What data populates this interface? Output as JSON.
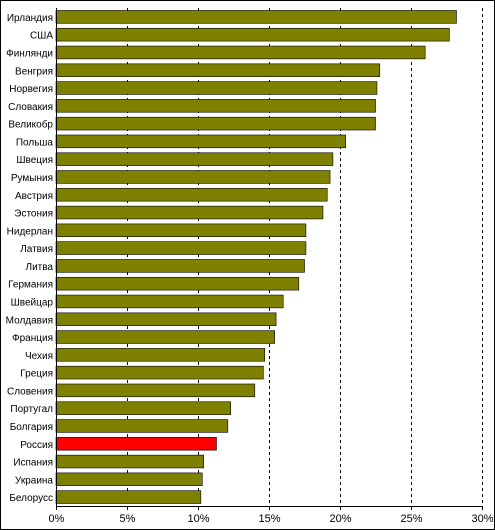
{
  "chart_data": {
    "type": "bar",
    "orientation": "horizontal",
    "categories": [
      "Ирландия",
      "США",
      "Финлянди",
      "Венгрия",
      "Норвегия",
      "Словакия",
      "Великобр",
      "Польша",
      "Швеция",
      "Румыния",
      "Австрия",
      "Эстония",
      "Нидерлан",
      "Латвия",
      "Литва",
      "Германия",
      "Швейцар",
      "Молдавия",
      "Франция",
      "Чехия",
      "Греция",
      "Словения",
      "Португал",
      "Болгария",
      "Россия",
      "Испания",
      "Украина",
      "Белорусс"
    ],
    "values": [
      28.2,
      27.7,
      26.0,
      22.8,
      22.6,
      22.5,
      22.5,
      20.4,
      19.5,
      19.3,
      19.1,
      18.8,
      17.6,
      17.6,
      17.5,
      17.1,
      16.0,
      15.5,
      15.4,
      14.7,
      14.6,
      14.0,
      12.3,
      12.1,
      11.3,
      10.4,
      10.3,
      10.2
    ],
    "highlight_category": "Россия",
    "colors": {
      "bar": "#808000",
      "highlight": "#ff0000",
      "bar_edge": "#000000",
      "grid": "#000000",
      "background": "#ffffff"
    },
    "x_ticks": [
      "0%",
      "5%",
      "10%",
      "15%",
      "20%",
      "25%",
      "30%"
    ],
    "xlim": [
      0,
      30
    ],
    "grid": "vertical dashed"
  }
}
